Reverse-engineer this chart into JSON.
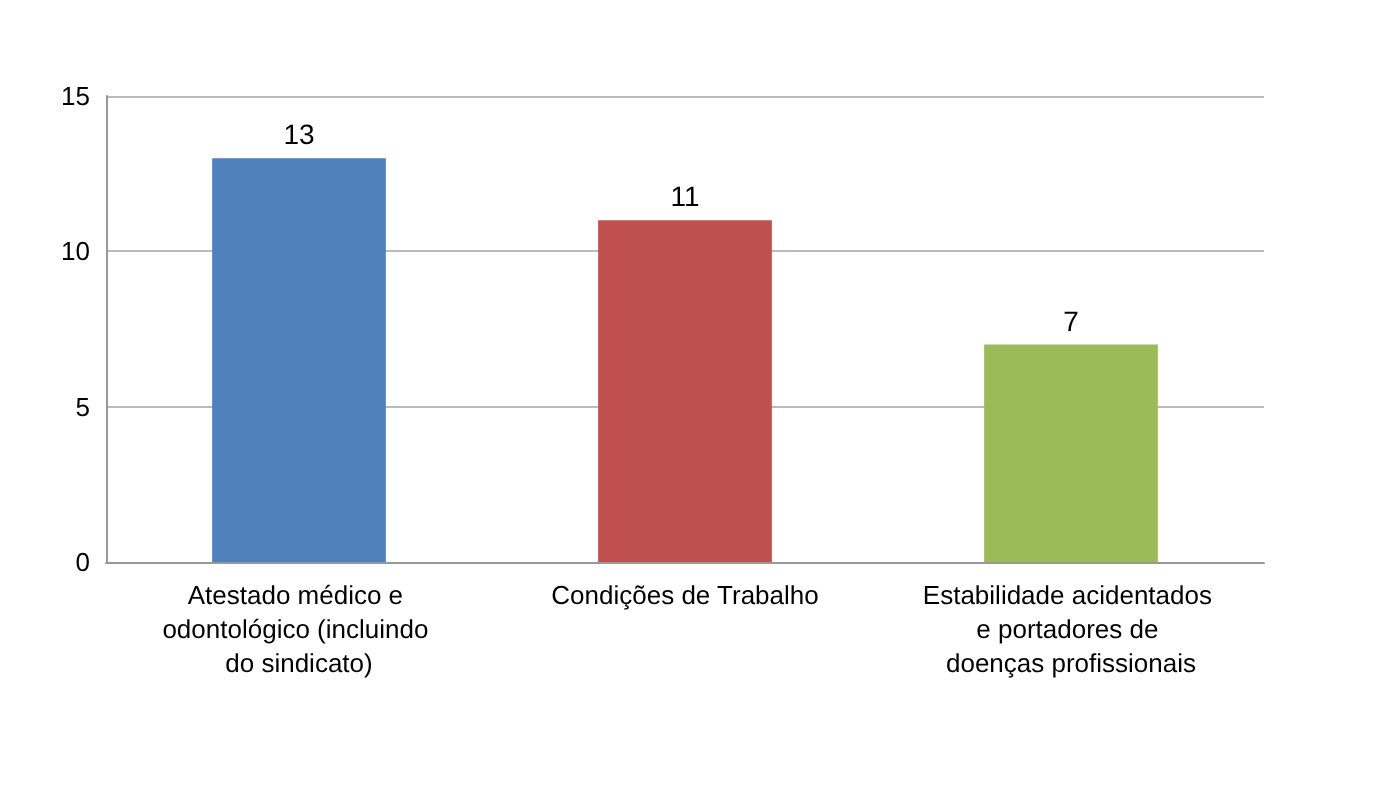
{
  "chart_data": {
    "type": "bar",
    "categories": [
      "Atestado médico e odontológico (incluindo do sindicato)",
      "Condições de Trabalho",
      "Estabilidade acidentados e portadores de doenças profissionais"
    ],
    "values": [
      13,
      11,
      7
    ],
    "colors": [
      "#4f81bd",
      "#c0504d",
      "#9bbb59"
    ],
    "ylim": [
      0,
      15
    ],
    "yticks": [
      0,
      5,
      10,
      15
    ],
    "grid": "y",
    "data_labels": true
  }
}
